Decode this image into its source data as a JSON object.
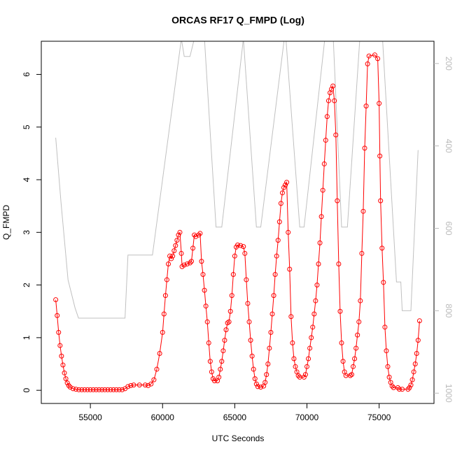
{
  "chart_data": {
    "type": "line",
    "title": "ORCAS RF17 Q_FMPD (Log)",
    "x_label": "UTC Seconds",
    "y_label": "Q_FMPD",
    "xlim": [
      51600,
      78800
    ],
    "xticks": [
      55000,
      60000,
      65000,
      70000,
      75000
    ],
    "ylim": [
      -0.25,
      6.63
    ],
    "yticks": [
      0,
      1,
      2,
      3,
      4,
      5,
      6
    ],
    "y2lim": [
      1025,
      146
    ],
    "y2ticks": [
      200,
      400,
      600,
      800,
      1000
    ],
    "series": [
      {
        "color": "#ff0000",
        "marker": "circle",
        "x": [
          52600,
          52700,
          52800,
          52900,
          53000,
          53100,
          53200,
          53300,
          53400,
          53500,
          53600,
          53800,
          54000,
          54200,
          54400,
          54600,
          54800,
          55000,
          55200,
          55400,
          55600,
          55800,
          56000,
          56200,
          56400,
          56600,
          56800,
          57000,
          57200,
          57400,
          57600,
          57800,
          58000,
          58400,
          58800,
          59000,
          59200,
          59400,
          59600,
          59800,
          60000,
          60100,
          60200,
          60300,
          60400,
          60500,
          60600,
          60700,
          60800,
          60900,
          61000,
          61100,
          61200,
          61300,
          61350,
          61500,
          61700,
          61900,
          62000,
          62100,
          62200,
          62300,
          62500,
          62600,
          62700,
          62800,
          62900,
          63000,
          63100,
          63200,
          63300,
          63400,
          63500,
          63600,
          63800,
          63900,
          64000,
          64100,
          64200,
          64300,
          64400,
          64500,
          64600,
          64700,
          64800,
          64900,
          65000,
          65100,
          65200,
          65400,
          65600,
          65700,
          65800,
          65900,
          66000,
          66100,
          66200,
          66300,
          66400,
          66500,
          66600,
          66800,
          67000,
          67100,
          67200,
          67300,
          67400,
          67500,
          67600,
          67700,
          67800,
          67900,
          68000,
          68100,
          68200,
          68300,
          68400,
          68500,
          68600,
          68700,
          68800,
          68900,
          69000,
          69100,
          69200,
          69300,
          69400,
          69500,
          69800,
          69900,
          70000,
          70100,
          70200,
          70300,
          70400,
          70500,
          70600,
          70700,
          70800,
          70900,
          71000,
          71100,
          71200,
          71300,
          71400,
          71500,
          71600,
          71700,
          71800,
          71900,
          72000,
          72100,
          72200,
          72300,
          72400,
          72500,
          72600,
          72700,
          73000,
          73100,
          73200,
          73300,
          73400,
          73500,
          73600,
          73700,
          73800,
          73900,
          74000,
          74100,
          74200,
          74300,
          74700,
          74900,
          75000,
          75050,
          75100,
          75200,
          75300,
          75400,
          75500,
          75600,
          75700,
          75800,
          75900,
          76000,
          76300,
          76400,
          76600,
          77000,
          77100,
          77200,
          77300,
          77400,
          77500,
          77600,
          77700,
          77800
        ],
        "values": [
          1.72,
          1.42,
          1.1,
          0.85,
          0.65,
          0.48,
          0.33,
          0.22,
          0.14,
          0.09,
          0.06,
          0.03,
          0.02,
          0.01,
          0.01,
          0.01,
          0.01,
          0.01,
          0.01,
          0.01,
          0.01,
          0.01,
          0.01,
          0.01,
          0.01,
          0.01,
          0.01,
          0.01,
          0.01,
          0.03,
          0.07,
          0.09,
          0.1,
          0.1,
          0.1,
          0.09,
          0.12,
          0.2,
          0.4,
          0.7,
          1.1,
          1.45,
          1.8,
          2.1,
          2.4,
          2.55,
          2.5,
          2.55,
          2.65,
          2.75,
          2.85,
          2.95,
          3.0,
          2.6,
          2.35,
          2.38,
          2.4,
          2.42,
          2.45,
          2.7,
          2.95,
          2.92,
          2.95,
          2.98,
          2.45,
          2.2,
          1.9,
          1.6,
          1.3,
          0.9,
          0.55,
          0.35,
          0.22,
          0.18,
          0.18,
          0.25,
          0.4,
          0.55,
          0.75,
          0.95,
          1.15,
          1.28,
          1.3,
          1.5,
          1.8,
          2.2,
          2.55,
          2.72,
          2.76,
          2.75,
          2.73,
          2.6,
          2.1,
          1.65,
          1.3,
          0.95,
          0.65,
          0.4,
          0.22,
          0.12,
          0.07,
          0.06,
          0.08,
          0.15,
          0.3,
          0.5,
          0.8,
          1.1,
          1.45,
          1.8,
          2.2,
          2.55,
          2.85,
          3.2,
          3.55,
          3.75,
          3.85,
          3.9,
          3.95,
          3.0,
          2.3,
          1.4,
          0.9,
          0.6,
          0.45,
          0.35,
          0.28,
          0.25,
          0.25,
          0.3,
          0.45,
          0.6,
          0.8,
          1.0,
          1.2,
          1.45,
          1.7,
          2.0,
          2.4,
          2.8,
          3.3,
          3.8,
          4.3,
          4.75,
          5.2,
          5.5,
          5.65,
          5.72,
          5.78,
          5.5,
          4.85,
          3.6,
          2.4,
          1.5,
          0.9,
          0.55,
          0.35,
          0.28,
          0.28,
          0.3,
          0.45,
          0.6,
          0.8,
          1.05,
          1.3,
          1.7,
          2.6,
          3.4,
          4.6,
          5.4,
          6.2,
          6.35,
          6.37,
          6.3,
          5.45,
          4.45,
          3.6,
          2.7,
          2.05,
          1.2,
          0.75,
          0.45,
          0.25,
          0.15,
          0.08,
          0.05,
          0.05,
          0.02,
          0.02,
          0.02,
          0.05,
          0.1,
          0.2,
          0.35,
          0.5,
          0.7,
          0.95,
          1.32
        ]
      },
      {
        "color": "#c0c0c0",
        "axis": "y2",
        "x": [
          52600,
          52966,
          53450,
          53935,
          54177,
          57400,
          57600,
          59300,
          61300,
          61500,
          61900,
          62200,
          62900,
          63700,
          64100,
          65600,
          66500,
          66800,
          68500,
          69500,
          69800,
          71300,
          71800,
          72400,
          72800,
          73700,
          75200,
          76200,
          76500,
          76600,
          77200,
          77700
        ],
        "values": [
          380,
          538,
          725,
          793,
          818,
          818,
          665,
          665,
          140,
          183,
          183,
          140,
          140,
          597,
          597,
          140,
          597,
          597,
          120,
          597,
          597,
          120,
          120,
          597,
          597,
          120,
          120,
          730,
          730,
          800,
          800,
          410
        ]
      }
    ]
  }
}
